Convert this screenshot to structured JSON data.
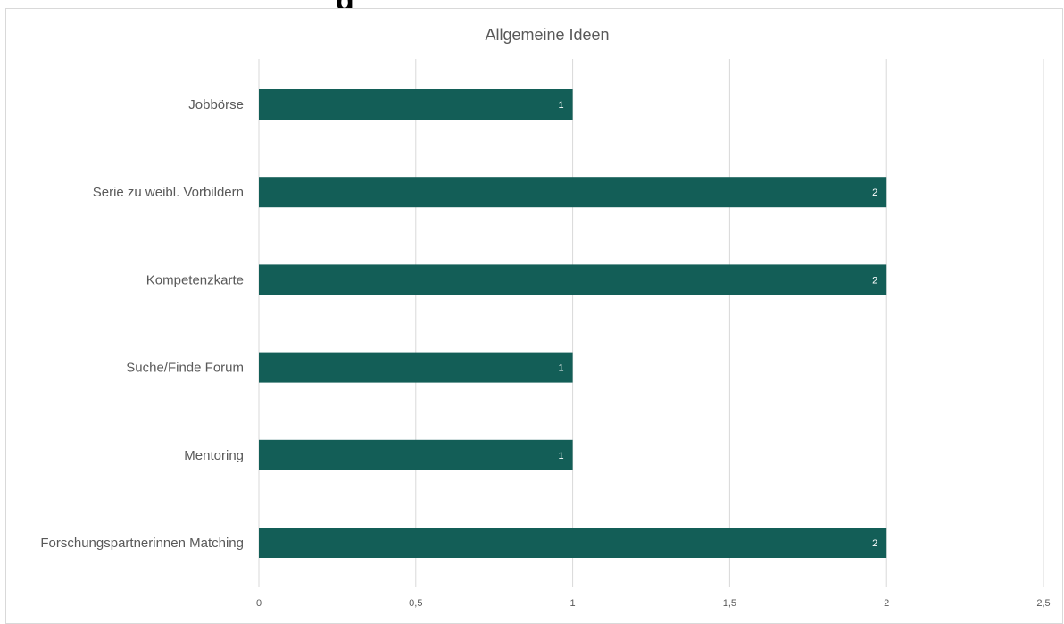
{
  "header_fragment": "g",
  "chart_data": {
    "type": "bar",
    "orientation": "horizontal",
    "title": "Allgemeine Ideen",
    "categories": [
      "Jobbörse",
      "Serie zu weibl. Vorbildern",
      "Kompetenzkarte",
      "Suche/Finde Forum",
      "Mentoring",
      "Forschungspartnerinnen Matching"
    ],
    "values": [
      1,
      2,
      2,
      1,
      1,
      2
    ],
    "data_labels": [
      "1",
      "2",
      "2",
      "1",
      "1",
      "2"
    ],
    "x_ticks": [
      "0",
      "0,5",
      "1",
      "1,5",
      "2",
      "2,5"
    ],
    "xlim": [
      0,
      2.5
    ],
    "grid": true,
    "legend": "none",
    "bar_color": "#135e57",
    "grid_color": "#d9d9d9",
    "text_color": "#595959"
  }
}
